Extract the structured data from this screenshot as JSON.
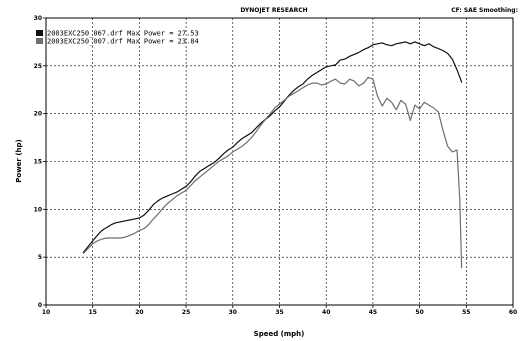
{
  "header": {
    "title": "DYNOJET RESEARCH",
    "right_info": "CF: SAE  Smoothing:"
  },
  "chart_data": {
    "type": "line",
    "xlabel": "Speed (mph)",
    "ylabel": "Power (hp)",
    "xlim": [
      10,
      60
    ],
    "ylim": [
      0,
      30
    ],
    "xticks": [
      10,
      15,
      20,
      25,
      30,
      35,
      40,
      45,
      50,
      55,
      60
    ],
    "yticks": [
      0,
      5,
      10,
      15,
      20,
      25,
      30
    ],
    "grid": true,
    "legend_position": "top-left",
    "series": [
      {
        "name": "2003EXC250_067.drf Max Power = 27.53",
        "color": "#111111",
        "x": [
          14,
          14.5,
          15,
          15.5,
          16,
          16.5,
          17,
          17.5,
          18,
          18.5,
          19,
          19.5,
          20,
          20.5,
          21,
          21.5,
          22,
          22.5,
          23,
          23.5,
          24,
          24.5,
          25,
          25.5,
          26,
          26.5,
          27,
          27.5,
          28,
          28.5,
          29,
          29.5,
          30,
          30.5,
          31,
          31.5,
          32,
          32.5,
          33,
          33.5,
          34,
          34.5,
          35,
          35.5,
          36,
          36.5,
          37,
          37.5,
          38,
          38.5,
          39,
          39.5,
          40,
          40.5,
          41,
          41.5,
          42,
          42.5,
          43,
          43.5,
          44,
          44.5,
          45,
          45.5,
          46,
          46.5,
          47,
          47.5,
          48,
          48.5,
          49,
          49.5,
          50,
          50.5,
          51,
          51.5,
          52,
          52.5,
          53,
          53.5,
          54,
          54.5
        ],
        "y": [
          5.5,
          6.1,
          6.7,
          7.3,
          7.8,
          8.1,
          8.4,
          8.6,
          8.7,
          8.8,
          8.9,
          9.0,
          9.1,
          9.4,
          9.9,
          10.5,
          10.9,
          11.2,
          11.4,
          11.6,
          11.8,
          12.1,
          12.4,
          12.9,
          13.5,
          14.0,
          14.3,
          14.6,
          14.9,
          15.3,
          15.8,
          16.2,
          16.5,
          17.0,
          17.4,
          17.7,
          18.0,
          18.5,
          19.0,
          19.4,
          19.8,
          20.3,
          20.7,
          21.3,
          21.9,
          22.4,
          22.8,
          23.1,
          23.6,
          24.0,
          24.3,
          24.6,
          24.9,
          25.0,
          25.1,
          25.6,
          25.7,
          26.0,
          26.2,
          26.4,
          26.7,
          26.9,
          27.2,
          27.3,
          27.4,
          27.2,
          27.1,
          27.3,
          27.4,
          27.5,
          27.3,
          27.5,
          27.3,
          27.1,
          27.3,
          27.0,
          26.8,
          26.6,
          26.3,
          25.7,
          24.6,
          23.3
        ]
      },
      {
        "name": "2003EXC250_007.drf Max Power = 23.84",
        "color": "#6e6e6e",
        "x": [
          14,
          14.5,
          15,
          15.5,
          16,
          16.5,
          17,
          17.5,
          18,
          18.5,
          19,
          19.5,
          20,
          20.5,
          21,
          21.5,
          22,
          22.5,
          23,
          23.5,
          24,
          24.5,
          25,
          25.5,
          26,
          26.5,
          27,
          27.5,
          28,
          28.5,
          29,
          29.5,
          30,
          30.5,
          31,
          31.5,
          32,
          32.5,
          33,
          33.5,
          34,
          34.5,
          35,
          35.5,
          36,
          36.5,
          37,
          37.5,
          38,
          38.5,
          39,
          39.5,
          40,
          40.5,
          41,
          41.5,
          42,
          42.5,
          43,
          43.5,
          44,
          44.5,
          45,
          45.5,
          46,
          46.5,
          47,
          47.5,
          48,
          48.5,
          49,
          49.5,
          50,
          50.5,
          51,
          51.5,
          52,
          52.5,
          53,
          53.5,
          54,
          54.3,
          54.5
        ],
        "y": [
          5.4,
          5.9,
          6.4,
          6.7,
          6.9,
          7.0,
          7.0,
          7.0,
          7.0,
          7.1,
          7.3,
          7.5,
          7.8,
          8.0,
          8.4,
          9.0,
          9.5,
          10.1,
          10.6,
          11.0,
          11.4,
          11.7,
          12.0,
          12.5,
          13.0,
          13.4,
          13.8,
          14.2,
          14.6,
          15.0,
          15.3,
          15.6,
          16.0,
          16.3,
          16.6,
          17.0,
          17.5,
          18.1,
          18.8,
          19.4,
          20.0,
          20.6,
          21.0,
          21.4,
          21.8,
          22.1,
          22.4,
          22.7,
          23.0,
          23.2,
          23.2,
          23.0,
          23.1,
          23.4,
          23.6,
          23.2,
          23.1,
          23.6,
          23.4,
          22.9,
          23.2,
          23.8,
          23.6,
          21.8,
          20.8,
          21.6,
          21.2,
          20.4,
          21.4,
          21.0,
          19.3,
          20.9,
          20.5,
          21.2,
          20.9,
          20.6,
          20.2,
          18.3,
          16.6,
          16.0,
          16.2,
          11.0,
          3.9
        ]
      }
    ]
  }
}
